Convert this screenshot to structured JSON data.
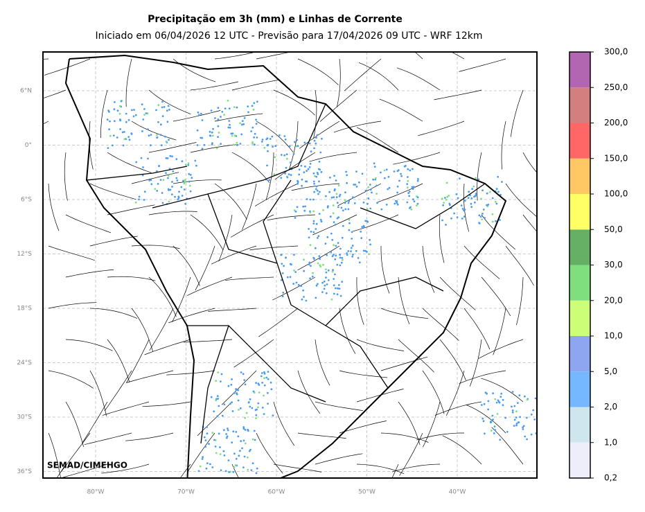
{
  "header": {
    "title": "Precipitação em 3h (mm) e Linhas de Corrente",
    "subtitle": "Iniciado em 06/04/2026 12 UTC - Previsão para 17/04/2026 09 UTC - WRF 12km"
  },
  "map": {
    "lat_labels": [
      "6°N",
      "0°",
      "6°S",
      "12°S",
      "18°S",
      "24°S",
      "30°S",
      "36°S"
    ],
    "lon_labels": [
      "80°W",
      "70°W",
      "60°W",
      "50°W",
      "40°W"
    ],
    "watermark": "SEMAD/CIMEHGO"
  },
  "colorbar": {
    "labels": [
      "0,2",
      "1,0",
      "2,0",
      "5,0",
      "10,0",
      "20,0",
      "30,0",
      "50,0",
      "100,0",
      "150,0",
      "200,0",
      "250,0",
      "300,0"
    ],
    "colors": [
      "#eeeefa",
      "#cfe6ef",
      "#75b8ff",
      "#8ea6ef",
      "#ccff77",
      "#7fdf7f",
      "#66b066",
      "#ffff66",
      "#ffc864",
      "#ff6666",
      "#d47f7f",
      "#b266b2"
    ]
  }
}
